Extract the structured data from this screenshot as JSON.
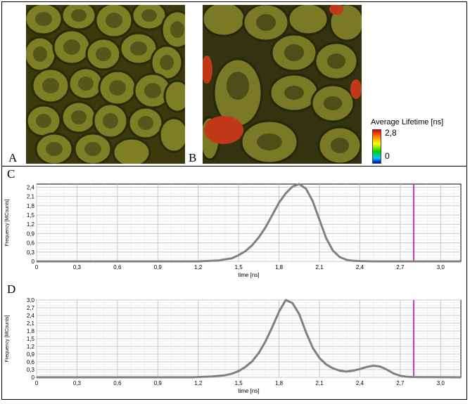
{
  "panels": {
    "a": {
      "label": "A"
    },
    "b": {
      "label": "B"
    },
    "c": {
      "label": "C"
    },
    "d": {
      "label": "D"
    }
  },
  "legend": {
    "title": "Average Lifetime [ns]",
    "max": "2,8",
    "min": "0",
    "gradient_colors": [
      "#e00000",
      "#ff8000",
      "#ffff00",
      "#00d000",
      "#00c8ff",
      "#0000c0"
    ]
  },
  "colors": {
    "curve": "#808080",
    "marker": "#cc00cc",
    "grid": "#c8c8c8",
    "grid_minor": "#e4e4e4"
  },
  "chart_data": [
    {
      "id": "C",
      "type": "line",
      "title": "",
      "xlabel": "time [ns]",
      "ylabel": "Frequency [MCounts]",
      "xlim": [
        0,
        3.15
      ],
      "ylim": [
        0,
        2.5
      ],
      "x_ticks": [
        "0",
        "0,3",
        "0,6",
        "0,9",
        "1,2",
        "1,5",
        "1,8",
        "2,1",
        "2,4",
        "2,7",
        "3,0"
      ],
      "y_ticks": [
        "0",
        "0,3",
        "0,6",
        "0,9",
        "1,2",
        "1,5",
        "1,8",
        "2,1",
        "2,4"
      ],
      "grid": true,
      "marker_line_x": 2.8,
      "x": [
        0,
        1.2,
        1.35,
        1.45,
        1.5,
        1.55,
        1.6,
        1.65,
        1.7,
        1.75,
        1.8,
        1.85,
        1.9,
        1.95,
        2.0,
        2.05,
        2.1,
        2.15,
        2.2,
        2.25,
        2.3,
        2.35,
        2.4,
        2.5,
        3.15
      ],
      "y": [
        0,
        0,
        0.03,
        0.1,
        0.2,
        0.33,
        0.52,
        0.78,
        1.1,
        1.5,
        1.9,
        2.2,
        2.42,
        2.5,
        2.35,
        1.95,
        1.35,
        0.75,
        0.35,
        0.14,
        0.05,
        0.02,
        0.01,
        0,
        0
      ]
    },
    {
      "id": "D",
      "type": "line",
      "title": "",
      "xlabel": "time [ns]",
      "ylabel": "Frequency [MCounts]",
      "xlim": [
        0,
        3.15
      ],
      "ylim": [
        0,
        3.0
      ],
      "x_ticks": [
        "0",
        "0,3",
        "0,6",
        "0,9",
        "1,2",
        "1,5",
        "1,8",
        "2,1",
        "2,4",
        "2,7",
        "3,0"
      ],
      "y_ticks": [
        "0",
        "0,3",
        "0,6",
        "0,9",
        "1,2",
        "1,5",
        "1,8",
        "2,1",
        "2,4",
        "2,7",
        "3,0"
      ],
      "grid": true,
      "marker_line_x": 2.8,
      "x": [
        0,
        1.15,
        1.3,
        1.4,
        1.45,
        1.5,
        1.55,
        1.6,
        1.65,
        1.7,
        1.75,
        1.8,
        1.85,
        1.9,
        1.95,
        2.0,
        2.05,
        2.1,
        2.15,
        2.2,
        2.25,
        2.3,
        2.35,
        2.4,
        2.45,
        2.5,
        2.55,
        2.6,
        2.65,
        2.7,
        2.75,
        2.8,
        3.15
      ],
      "y": [
        0,
        0,
        0.03,
        0.08,
        0.14,
        0.24,
        0.4,
        0.62,
        0.95,
        1.4,
        1.95,
        2.55,
        3.0,
        2.88,
        2.45,
        1.75,
        1.15,
        0.75,
        0.5,
        0.35,
        0.26,
        0.22,
        0.26,
        0.32,
        0.4,
        0.45,
        0.42,
        0.3,
        0.15,
        0.06,
        0.02,
        0.01,
        0
      ]
    }
  ]
}
